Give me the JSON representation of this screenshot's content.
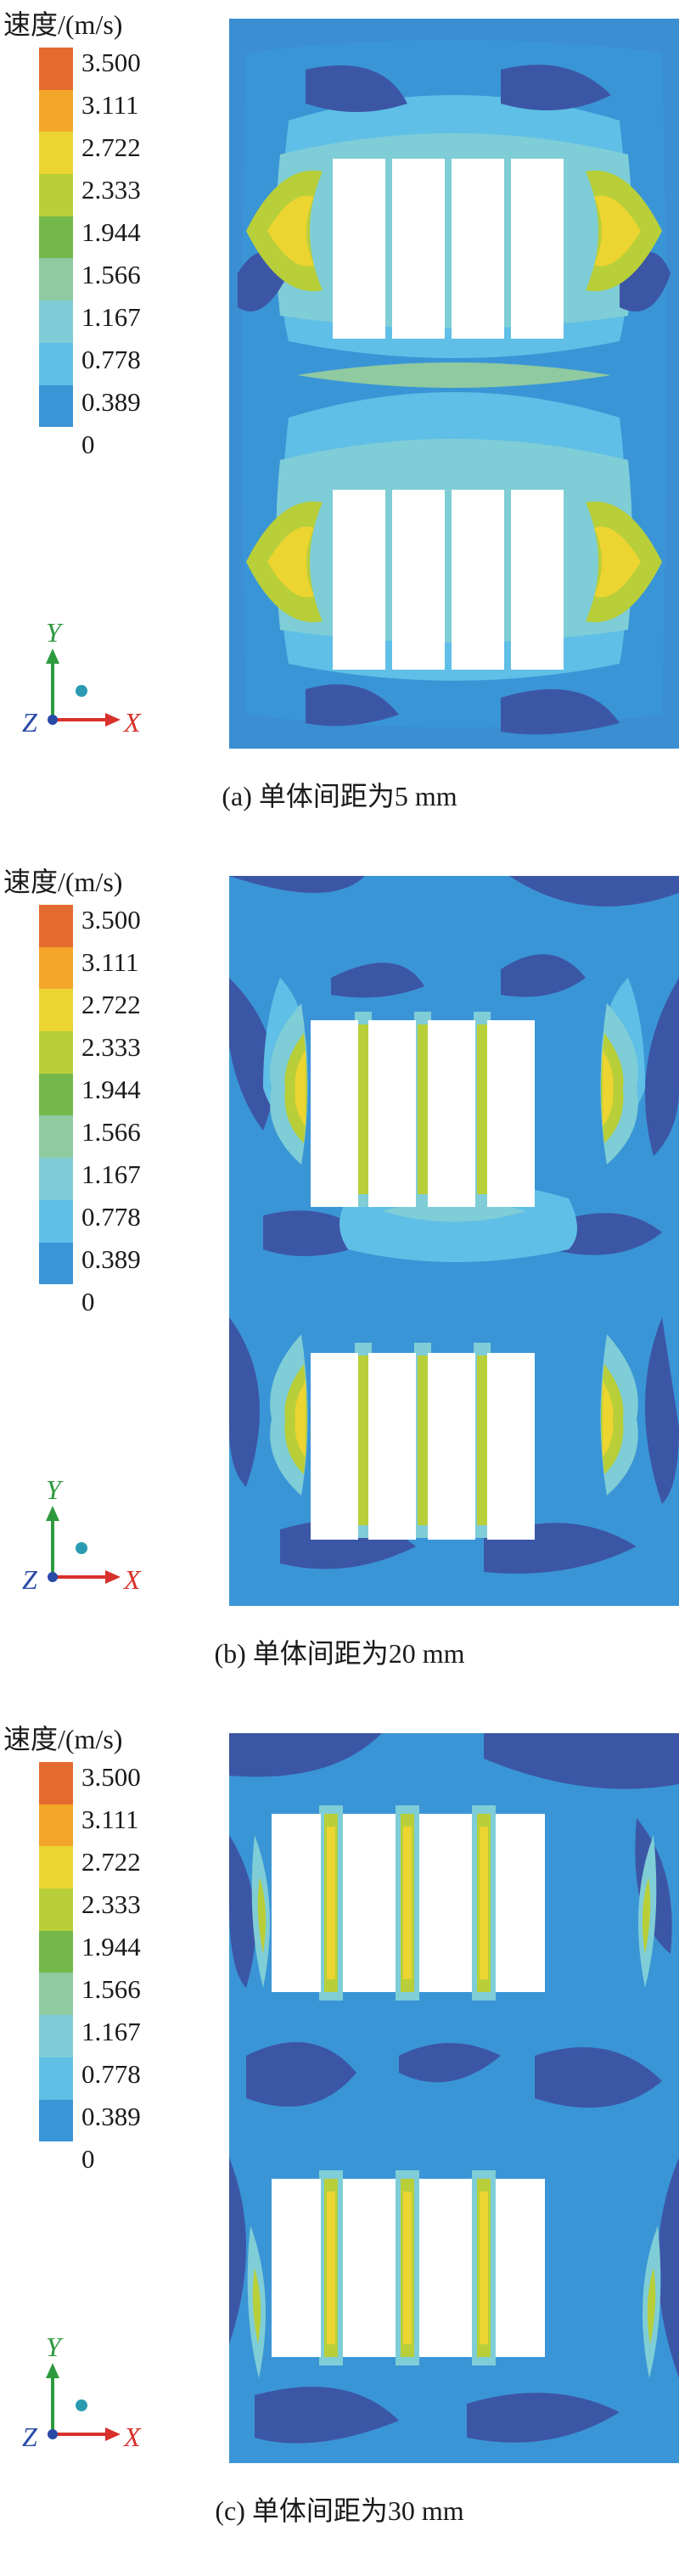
{
  "legend": {
    "title": "速度/(m/s)",
    "ticks": [
      "3.500",
      "3.111",
      "2.722",
      "2.333",
      "1.944",
      "1.566",
      "1.167",
      "0.778",
      "0.389",
      "0"
    ],
    "colors": [
      "#e36b2f",
      "#f3a62a",
      "#ecd431",
      "#b8cf3a",
      "#74b84a",
      "#8fcaa0",
      "#7fcdd6",
      "#5fbfe6",
      "#3a95d6",
      "#3c56a6"
    ]
  },
  "axes": {
    "y": "Y",
    "z": "Z",
    "x": "X"
  },
  "panels": [
    {
      "caption": "(a) 单体间距为5 mm"
    },
    {
      "caption": "(b) 单体间距为20 mm"
    },
    {
      "caption": "(c) 单体间距为30 mm"
    }
  ]
}
